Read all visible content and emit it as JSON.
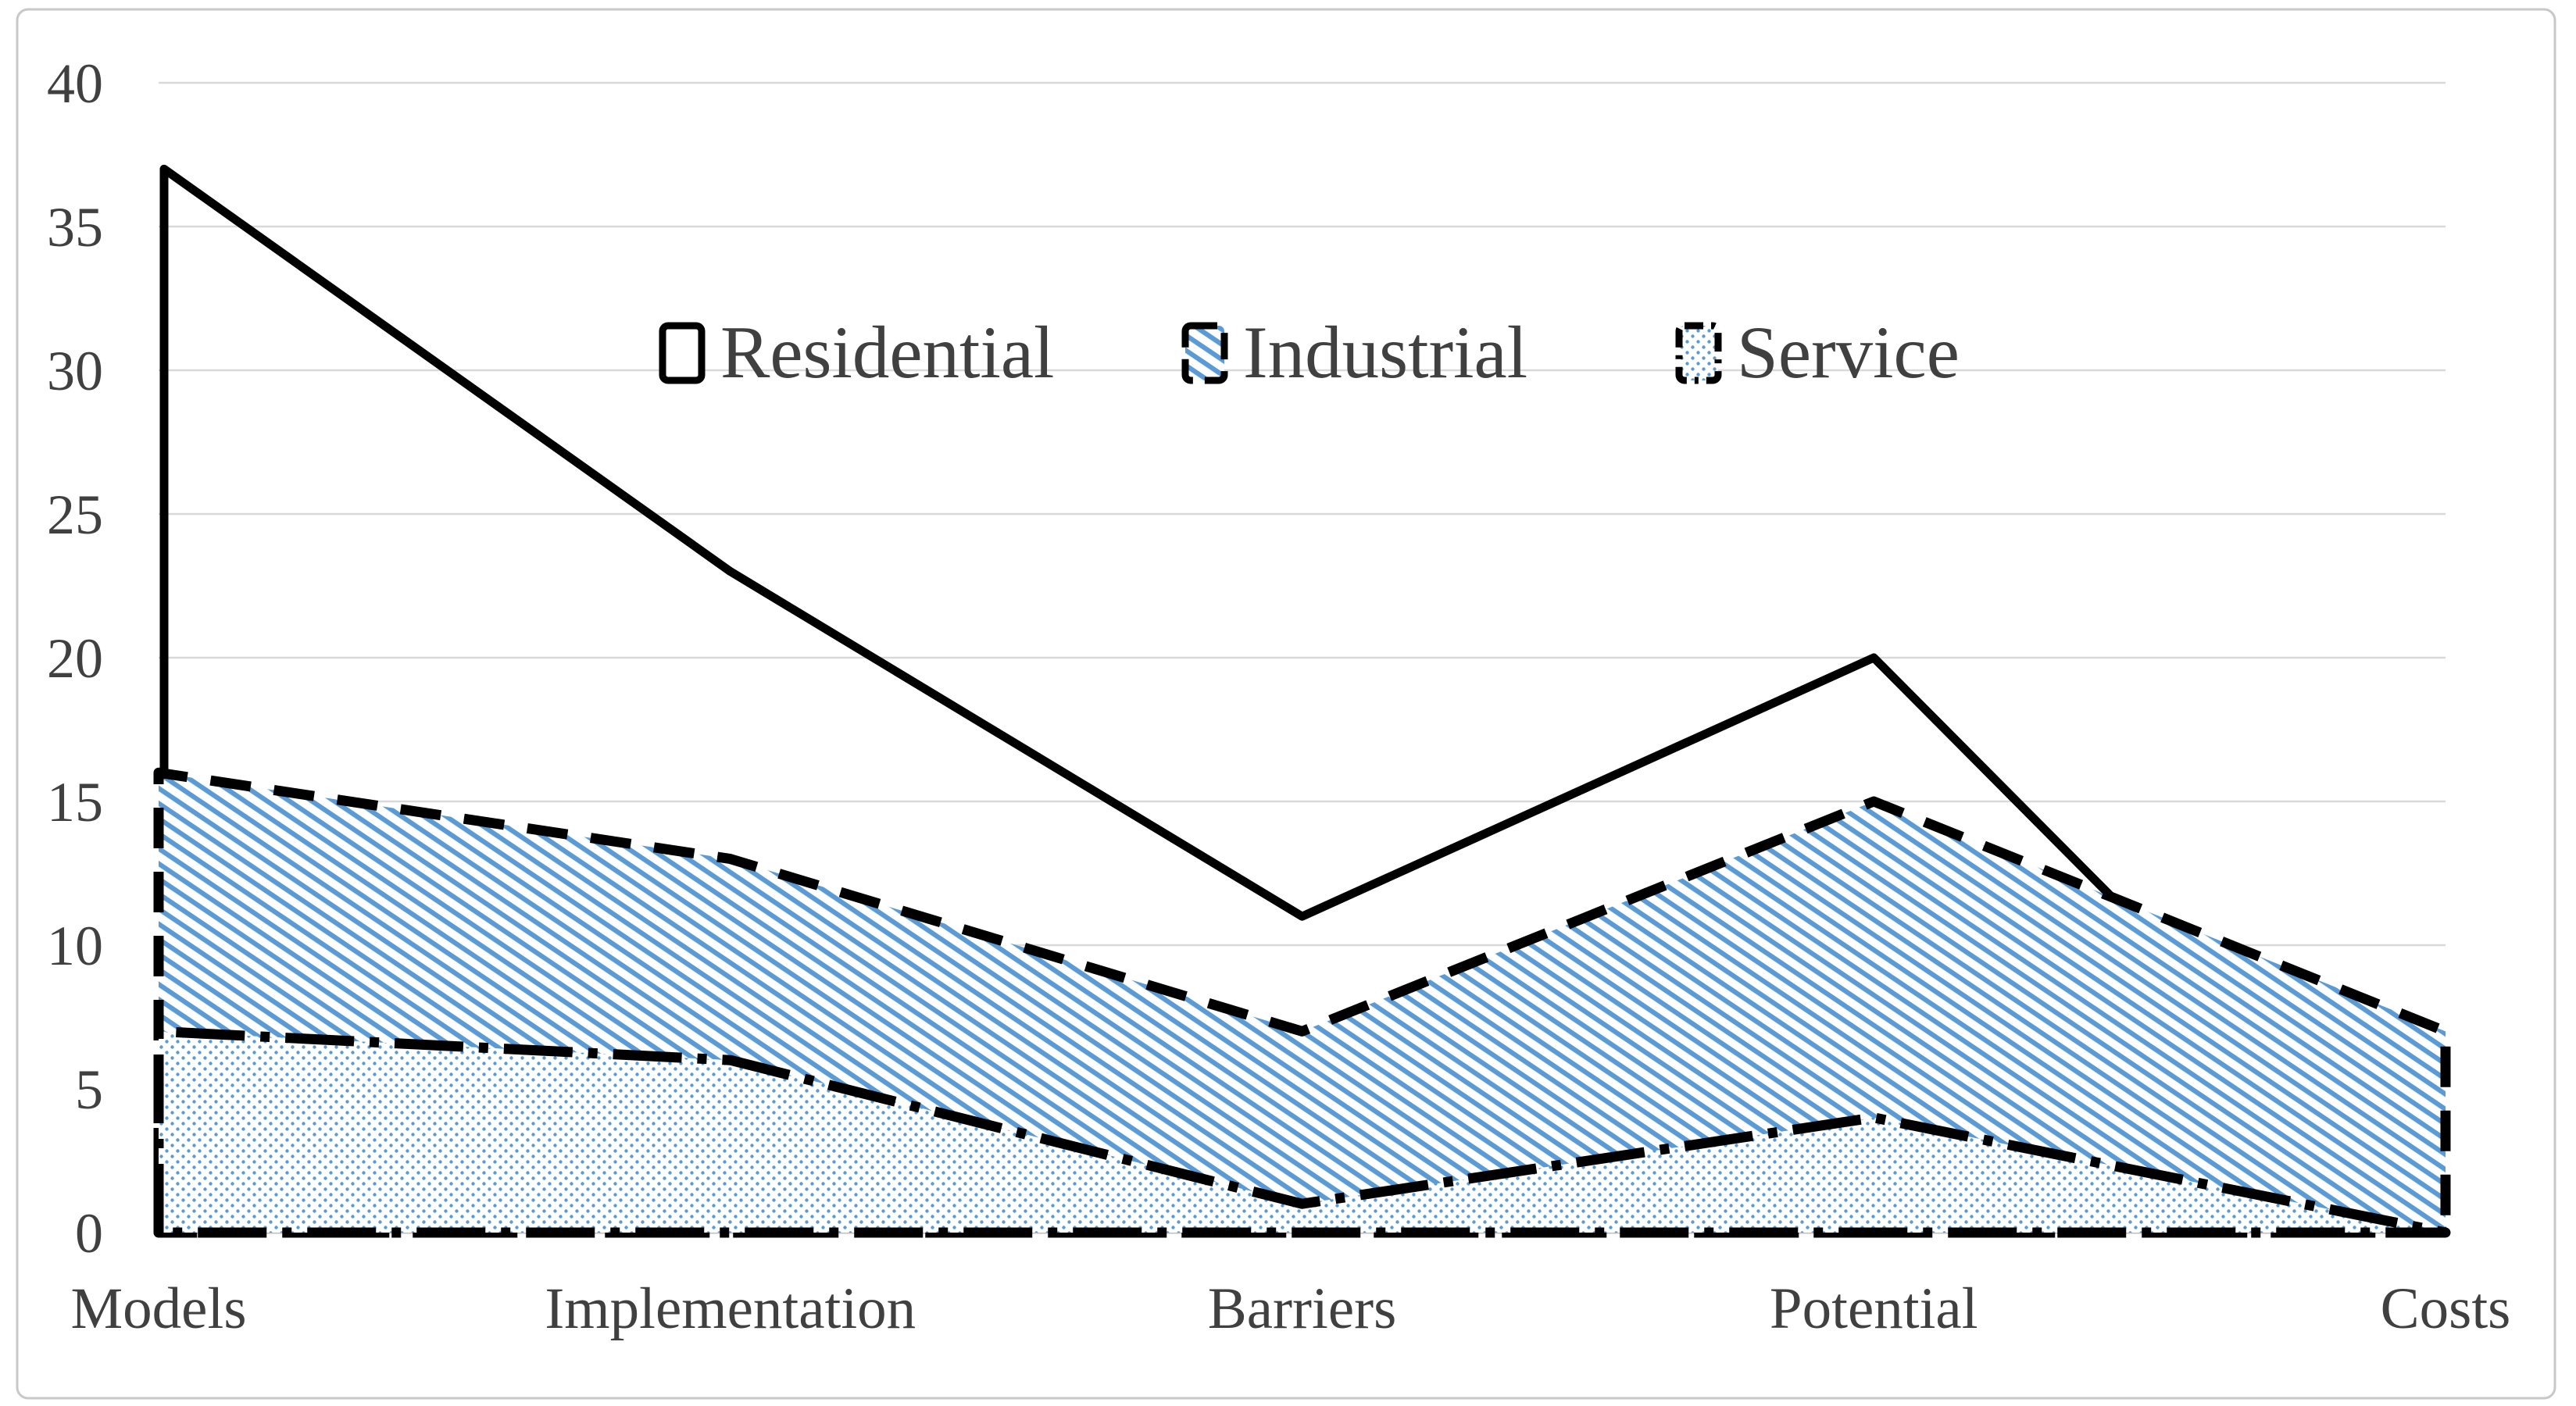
{
  "chart_data": {
    "type": "area",
    "title": "",
    "xlabel": "",
    "ylabel": "",
    "categories": [
      "Models",
      "Implementation",
      "Barriers",
      "Potential",
      "Costs"
    ],
    "series": [
      {
        "name": "Residential",
        "type": "line",
        "values": [
          37,
          23,
          11,
          20,
          0
        ],
        "line_style": "solid",
        "fill_pattern": "none",
        "line_color": "#000000"
      },
      {
        "name": "Industrial",
        "type": "area",
        "values": [
          16,
          13,
          7,
          15,
          7
        ],
        "line_style": "dashed",
        "fill_pattern": "diagonal-hatch",
        "line_color": "#000000",
        "pattern_color": "#5b9bd5"
      },
      {
        "name": "Service",
        "type": "area",
        "values": [
          7,
          6,
          1,
          4,
          0
        ],
        "line_style": "dash-dot",
        "fill_pattern": "dots",
        "line_color": "#000000",
        "pattern_color": "#5b9bd5"
      }
    ],
    "ylim": [
      0,
      40
    ],
    "yticks": [
      0,
      5,
      10,
      15,
      20,
      25,
      30,
      35,
      40
    ],
    "grid": true,
    "legend_position": "top-center-inside",
    "legend_entries": [
      "Residential",
      "Industrial",
      "Service"
    ],
    "colors": {
      "accent_blue": "#5b9bd5",
      "text": "#404040",
      "gridline": "#d9d9d9",
      "axis_line": "#bfbfbf",
      "series_line": "#000000",
      "border": "#c8c8c8",
      "background": "#ffffff"
    }
  }
}
